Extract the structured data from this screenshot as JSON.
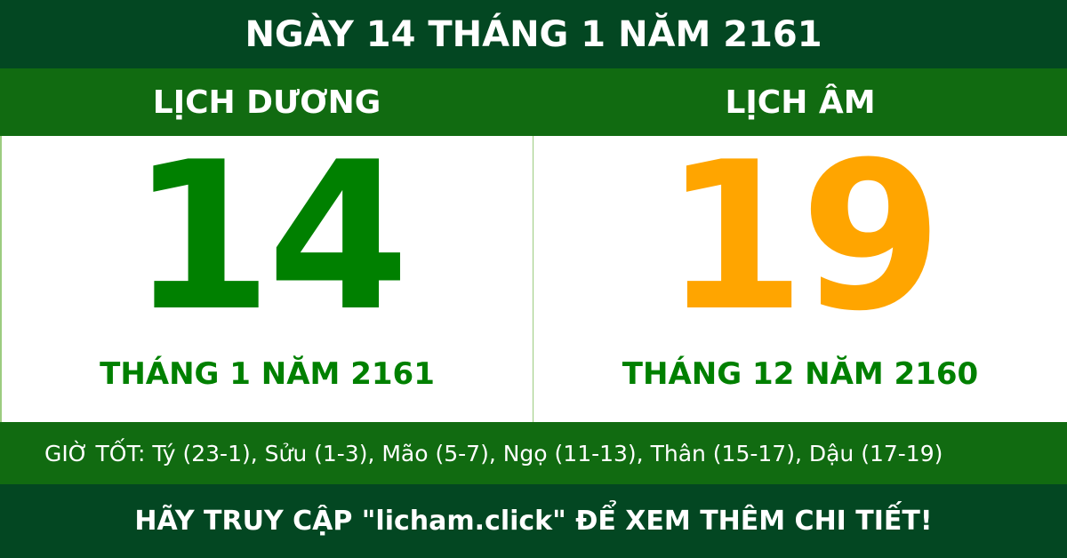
{
  "header": {
    "title": "NGÀY 14 THÁNG 1 NĂM 2161"
  },
  "solar": {
    "label": "LỊCH DƯƠNG",
    "day": "14",
    "month_year": "THÁNG 1 NĂM 2161"
  },
  "lunar": {
    "label": "LỊCH ÂM",
    "day": "19",
    "month_year": "THÁNG 12 NĂM 2160"
  },
  "good_hours": "GIỜ TỐT: Tý (23-1), Sửu (1-3), Mão (5-7), Ngọ (11-13), Thân (15-17), Dậu (17-19)",
  "footer": {
    "cta": "HÃY TRUY CẬP \"licham.click\" ĐỂ XEM THÊM CHI TIẾT!"
  },
  "colors": {
    "dark_green": "#034722",
    "band_green": "#116b11",
    "solar_green": "#008000",
    "lunar_orange": "#ffa500"
  }
}
